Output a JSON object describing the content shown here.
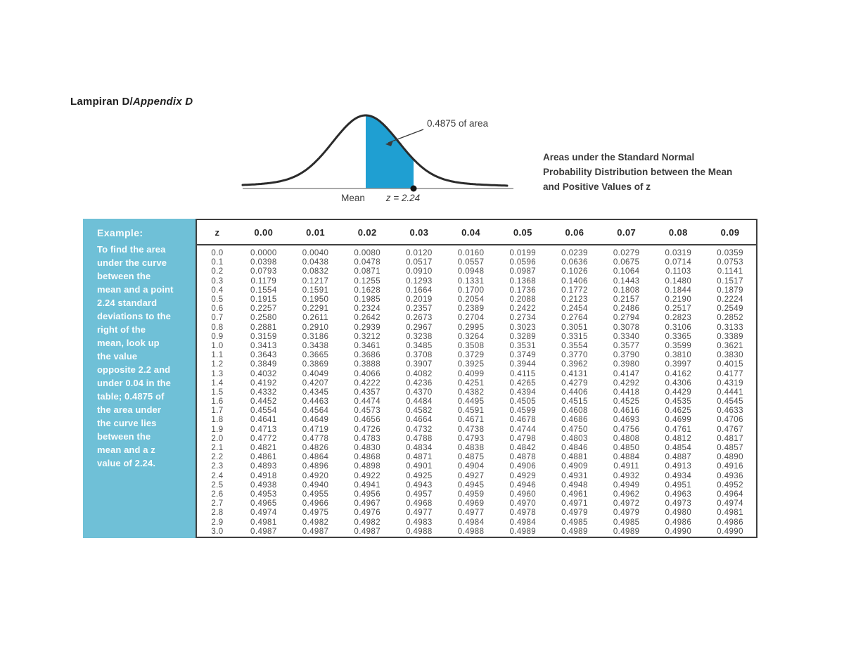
{
  "title": {
    "main": "Lampiran D/",
    "italic": "Appendix D"
  },
  "diagram": {
    "area_label": "0.4875 of area",
    "mean_label": "Mean",
    "z_label": "z = 2.24"
  },
  "caption": {
    "lines": [
      "Areas under the Standard Normal",
      "Probability Distribution between the Mean",
      "and Positive Values of z"
    ]
  },
  "example": {
    "heading": "Example:",
    "lines": [
      "To find the area",
      "under the curve",
      "between the",
      "mean and a point",
      "2.24 standard",
      "deviations to the",
      "right of the",
      "mean, look up",
      "the value",
      "opposite 2.2 and",
      "under 0.04 in the",
      "table; 0.4875 of",
      "the area under",
      "the curve lies",
      "between the",
      "mean and a z",
      "value of 2.24."
    ]
  },
  "table": {
    "headers": [
      "z",
      "0.00",
      "0.01",
      "0.02",
      "0.03",
      "0.04",
      "0.05",
      "0.06",
      "0.07",
      "0.08",
      "0.09"
    ],
    "rows": [
      {
        "z": "0.0",
        "values": [
          "0.0000",
          "0.0040",
          "0.0080",
          "0.0120",
          "0.0160",
          "0.0199",
          "0.0239",
          "0.0279",
          "0.0319",
          "0.0359"
        ]
      },
      {
        "z": "0.1",
        "values": [
          "0.0398",
          "0.0438",
          "0.0478",
          "0.0517",
          "0.0557",
          "0.0596",
          "0.0636",
          "0.0675",
          "0.0714",
          "0.0753"
        ]
      },
      {
        "z": "0.2",
        "values": [
          "0.0793",
          "0.0832",
          "0.0871",
          "0.0910",
          "0.0948",
          "0.0987",
          "0.1026",
          "0.1064",
          "0.1103",
          "0.1141"
        ]
      },
      {
        "z": "0.3",
        "values": [
          "0.1179",
          "0.1217",
          "0.1255",
          "0.1293",
          "0.1331",
          "0.1368",
          "0.1406",
          "0.1443",
          "0.1480",
          "0.1517"
        ]
      },
      {
        "z": "0.4",
        "values": [
          "0.1554",
          "0.1591",
          "0.1628",
          "0.1664",
          "0.1700",
          "0.1736",
          "0.1772",
          "0.1808",
          "0.1844",
          "0.1879"
        ]
      },
      {
        "z": "0.5",
        "values": [
          "0.1915",
          "0.1950",
          "0.1985",
          "0.2019",
          "0.2054",
          "0.2088",
          "0.2123",
          "0.2157",
          "0.2190",
          "0.2224"
        ]
      },
      {
        "z": "0.6",
        "values": [
          "0.2257",
          "0.2291",
          "0.2324",
          "0.2357",
          "0.2389",
          "0.2422",
          "0.2454",
          "0.2486",
          "0.2517",
          "0.2549"
        ]
      },
      {
        "z": "0.7",
        "values": [
          "0.2580",
          "0.2611",
          "0.2642",
          "0.2673",
          "0.2704",
          "0.2734",
          "0.2764",
          "0.2794",
          "0.2823",
          "0.2852"
        ]
      },
      {
        "z": "0.8",
        "values": [
          "0.2881",
          "0.2910",
          "0.2939",
          "0.2967",
          "0.2995",
          "0.3023",
          "0.3051",
          "0.3078",
          "0.3106",
          "0.3133"
        ]
      },
      {
        "z": "0.9",
        "values": [
          "0.3159",
          "0.3186",
          "0.3212",
          "0.3238",
          "0.3264",
          "0.3289",
          "0.3315",
          "0.3340",
          "0.3365",
          "0.3389"
        ]
      },
      {
        "z": "1.0",
        "values": [
          "0.3413",
          "0.3438",
          "0.3461",
          "0.3485",
          "0.3508",
          "0.3531",
          "0.3554",
          "0.3577",
          "0.3599",
          "0.3621"
        ]
      },
      {
        "z": "1.1",
        "values": [
          "0.3643",
          "0.3665",
          "0.3686",
          "0.3708",
          "0.3729",
          "0.3749",
          "0.3770",
          "0.3790",
          "0.3810",
          "0.3830"
        ]
      },
      {
        "z": "1.2",
        "values": [
          "0.3849",
          "0.3869",
          "0.3888",
          "0.3907",
          "0.3925",
          "0.3944",
          "0.3962",
          "0.3980",
          "0.3997",
          "0.4015"
        ]
      },
      {
        "z": "1.3",
        "values": [
          "0.4032",
          "0.4049",
          "0.4066",
          "0.4082",
          "0.4099",
          "0.4115",
          "0.4131",
          "0.4147",
          "0.4162",
          "0.4177"
        ]
      },
      {
        "z": "1.4",
        "values": [
          "0.4192",
          "0.4207",
          "0.4222",
          "0.4236",
          "0.4251",
          "0.4265",
          "0.4279",
          "0.4292",
          "0.4306",
          "0.4319"
        ]
      },
      {
        "z": "1.5",
        "values": [
          "0.4332",
          "0.4345",
          "0.4357",
          "0.4370",
          "0.4382",
          "0.4394",
          "0.4406",
          "0.4418",
          "0.4429",
          "0.4441"
        ]
      },
      {
        "z": "1.6",
        "values": [
          "0.4452",
          "0.4463",
          "0.4474",
          "0.4484",
          "0.4495",
          "0.4505",
          "0.4515",
          "0.4525",
          "0.4535",
          "0.4545"
        ]
      },
      {
        "z": "1.7",
        "values": [
          "0.4554",
          "0.4564",
          "0.4573",
          "0.4582",
          "0.4591",
          "0.4599",
          "0.4608",
          "0.4616",
          "0.4625",
          "0.4633"
        ]
      },
      {
        "z": "1.8",
        "values": [
          "0.4641",
          "0.4649",
          "0.4656",
          "0.4664",
          "0.4671",
          "0.4678",
          "0.4686",
          "0.4693",
          "0.4699",
          "0.4706"
        ]
      },
      {
        "z": "1.9",
        "values": [
          "0.4713",
          "0.4719",
          "0.4726",
          "0.4732",
          "0.4738",
          "0.4744",
          "0.4750",
          "0.4756",
          "0.4761",
          "0.4767"
        ]
      },
      {
        "z": "2.0",
        "values": [
          "0.4772",
          "0.4778",
          "0.4783",
          "0.4788",
          "0.4793",
          "0.4798",
          "0.4803",
          "0.4808",
          "0.4812",
          "0.4817"
        ]
      },
      {
        "z": "2.1",
        "values": [
          "0.4821",
          "0.4826",
          "0.4830",
          "0.4834",
          "0.4838",
          "0.4842",
          "0.4846",
          "0.4850",
          "0.4854",
          "0.4857"
        ]
      },
      {
        "z": "2.2",
        "values": [
          "0.4861",
          "0.4864",
          "0.4868",
          "0.4871",
          "0.4875",
          "0.4878",
          "0.4881",
          "0.4884",
          "0.4887",
          "0.4890"
        ]
      },
      {
        "z": "2.3",
        "values": [
          "0.4893",
          "0.4896",
          "0.4898",
          "0.4901",
          "0.4904",
          "0.4906",
          "0.4909",
          "0.4911",
          "0.4913",
          "0.4916"
        ]
      },
      {
        "z": "2.4",
        "values": [
          "0.4918",
          "0.4920",
          "0.4922",
          "0.4925",
          "0.4927",
          "0.4929",
          "0.4931",
          "0.4932",
          "0.4934",
          "0.4936"
        ]
      },
      {
        "z": "2.5",
        "values": [
          "0.4938",
          "0.4940",
          "0.4941",
          "0.4943",
          "0.4945",
          "0.4946",
          "0.4948",
          "0.4949",
          "0.4951",
          "0.4952"
        ]
      },
      {
        "z": "2.6",
        "values": [
          "0.4953",
          "0.4955",
          "0.4956",
          "0.4957",
          "0.4959",
          "0.4960",
          "0.4961",
          "0.4962",
          "0.4963",
          "0.4964"
        ]
      },
      {
        "z": "2.7",
        "values": [
          "0.4965",
          "0.4966",
          "0.4967",
          "0.4968",
          "0.4969",
          "0.4970",
          "0.4971",
          "0.4972",
          "0.4973",
          "0.4974"
        ]
      },
      {
        "z": "2.8",
        "values": [
          "0.4974",
          "0.4975",
          "0.4976",
          "0.4977",
          "0.4977",
          "0.4978",
          "0.4979",
          "0.4979",
          "0.4980",
          "0.4981"
        ]
      },
      {
        "z": "2.9",
        "values": [
          "0.4981",
          "0.4982",
          "0.4982",
          "0.4983",
          "0.4984",
          "0.4984",
          "0.4985",
          "0.4985",
          "0.4986",
          "0.4986"
        ]
      },
      {
        "z": "3.0",
        "values": [
          "0.4987",
          "0.4987",
          "0.4987",
          "0.4988",
          "0.4988",
          "0.4989",
          "0.4989",
          "0.4989",
          "0.4990",
          "0.4990"
        ]
      }
    ]
  },
  "colors": {
    "sidebar": "#6fc0d7",
    "shade": "#1f9fd2",
    "curve": "#2b2b2b",
    "border": "#3f3f3f",
    "axis": "#8d8d8d"
  }
}
